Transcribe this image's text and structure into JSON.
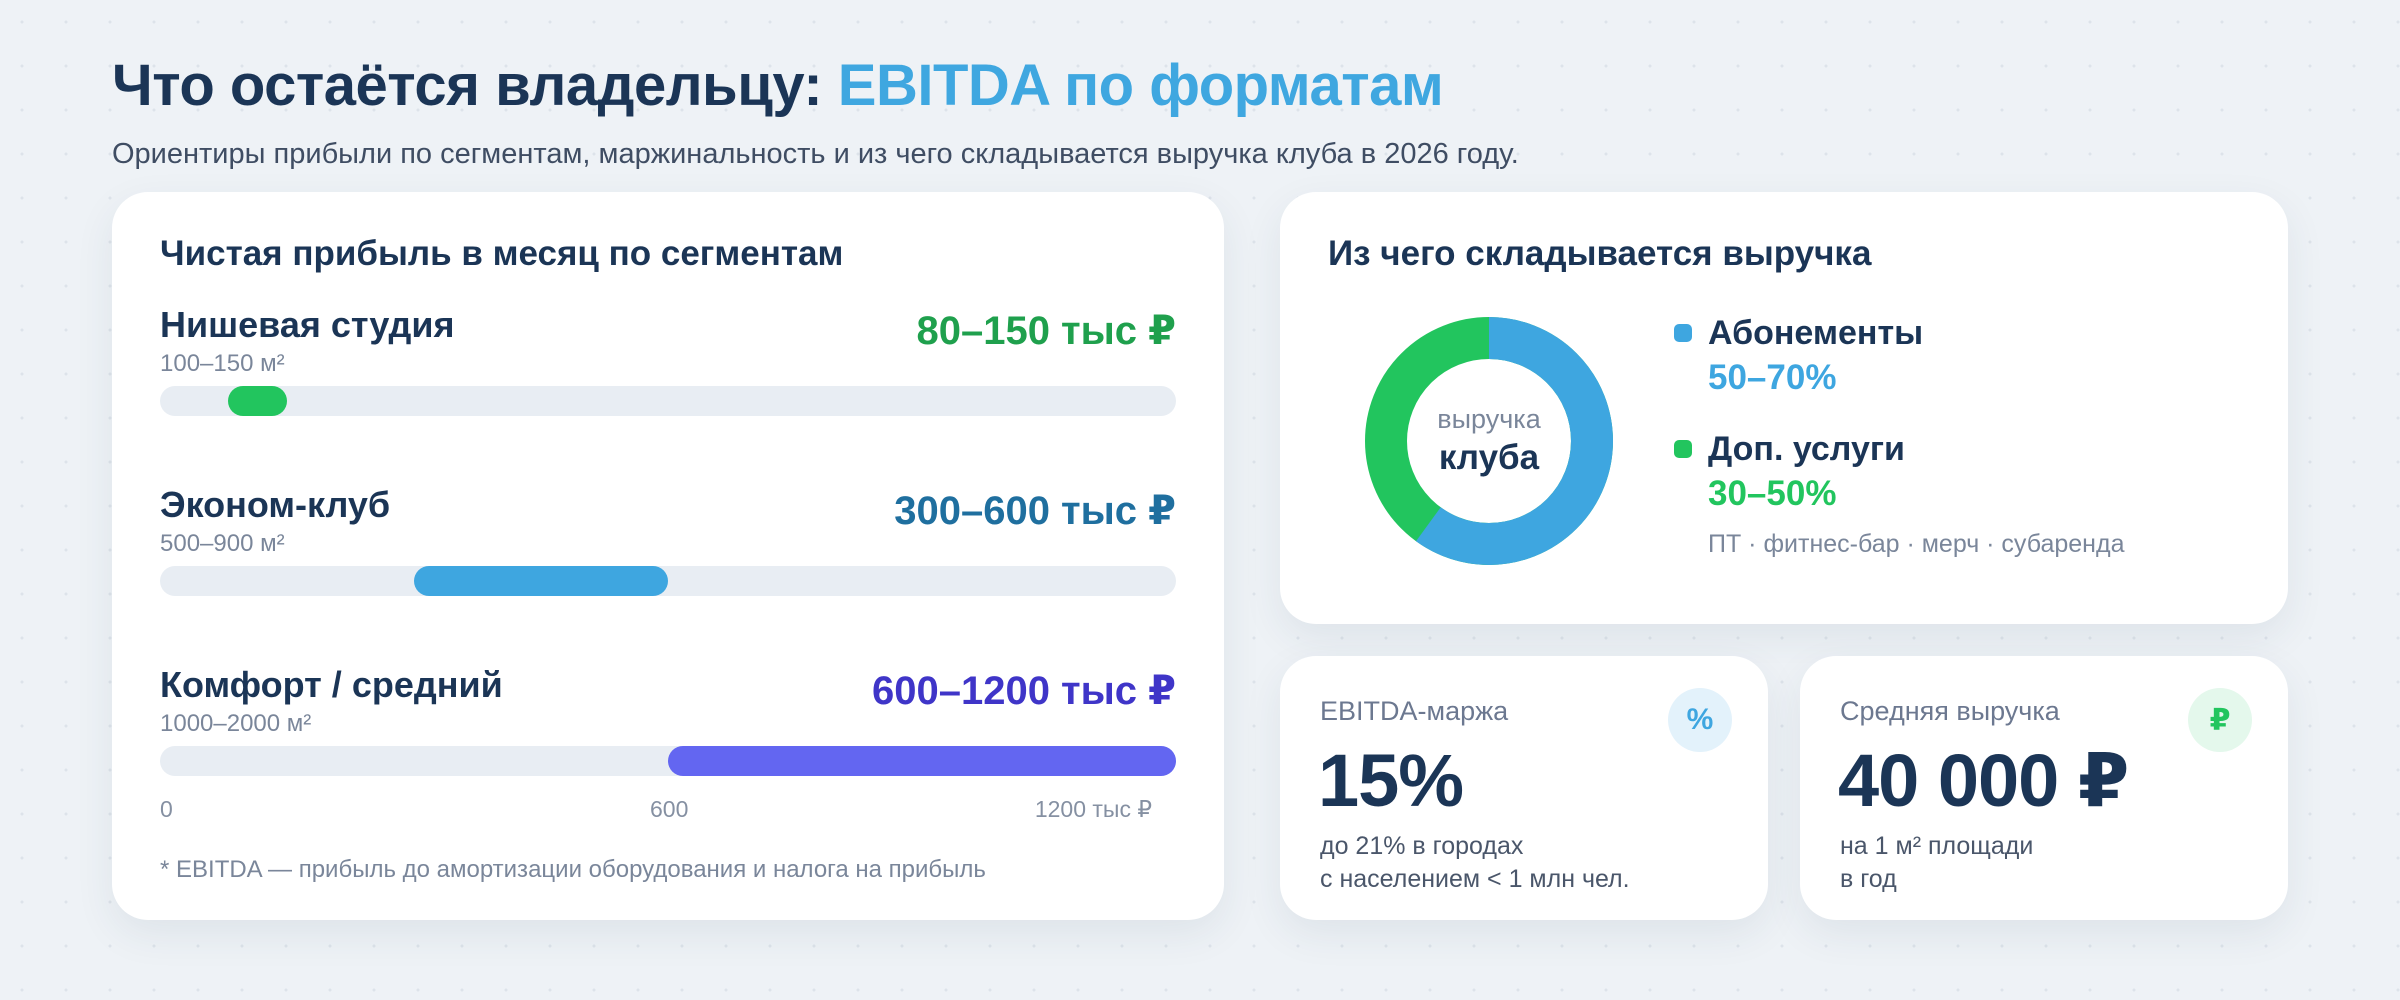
{
  "header": {
    "title_main": "Что остаётся владельцу:",
    "title_accent": "EBITDA по форматам",
    "subtitle": "Ориентиры прибыли по сегментам, маржинальность и из чего складывается выручка клуба в 2026 году."
  },
  "profit_card": {
    "title": "Чистая прибыль в месяц по сегментам",
    "segments": [
      {
        "name": "Нишевая студия",
        "area": "100–150 м²",
        "value": "80–150 тыс ₽",
        "range_min": 80,
        "range_max": 150,
        "color": "#22c55e",
        "value_color": "#1fa04d"
      },
      {
        "name": "Эконом-клуб",
        "area": "500–900 м²",
        "value": "300–600 тыс ₽",
        "range_min": 300,
        "range_max": 600,
        "color": "#3ea6e0",
        "value_color": "#1f6f9f"
      },
      {
        "name": "Комфорт / средний",
        "area": "1000–2000 м²",
        "value": "600–1200 тыс ₽",
        "range_min": 600,
        "range_max": 1200,
        "color": "#6366f1",
        "value_color": "#3f35c8"
      }
    ],
    "axis": {
      "min_label": "0",
      "mid_label": "600",
      "max_label": "1200 тыс ₽",
      "max": 1200
    },
    "note": "* EBITDA — прибыль до амортизации оборудования и налога на прибыль"
  },
  "revenue_card": {
    "title": "Из чего складывается выручка",
    "donut_label_small": "выручка",
    "donut_label_large": "клуба",
    "items": [
      {
        "name": "Абонементы",
        "value": "50–70%",
        "color": "#3ea6e0",
        "share": 0.6
      },
      {
        "name": "Доп. услуги",
        "value": "30–50%",
        "color": "#22c55e",
        "share": 0.4,
        "sub": "ПТ · фитнес-бар · мерч · субаренда"
      }
    ]
  },
  "margin_card": {
    "label": "EBITDA-маржа",
    "value": "15%",
    "sub_line1": "до 21% в городах",
    "sub_line2": "с населением < 1 млн чел.",
    "icon": "percent-icon",
    "icon_glyph": "%",
    "icon_color": "#3ea6e0"
  },
  "avg_revenue_card": {
    "label": "Средняя выручка",
    "value": "40 000 ₽",
    "sub_line1": "на 1 м² площади",
    "sub_line2": "в год",
    "icon": "ruble-icon",
    "icon_glyph": "₽",
    "icon_color": "#22c55e"
  }
}
